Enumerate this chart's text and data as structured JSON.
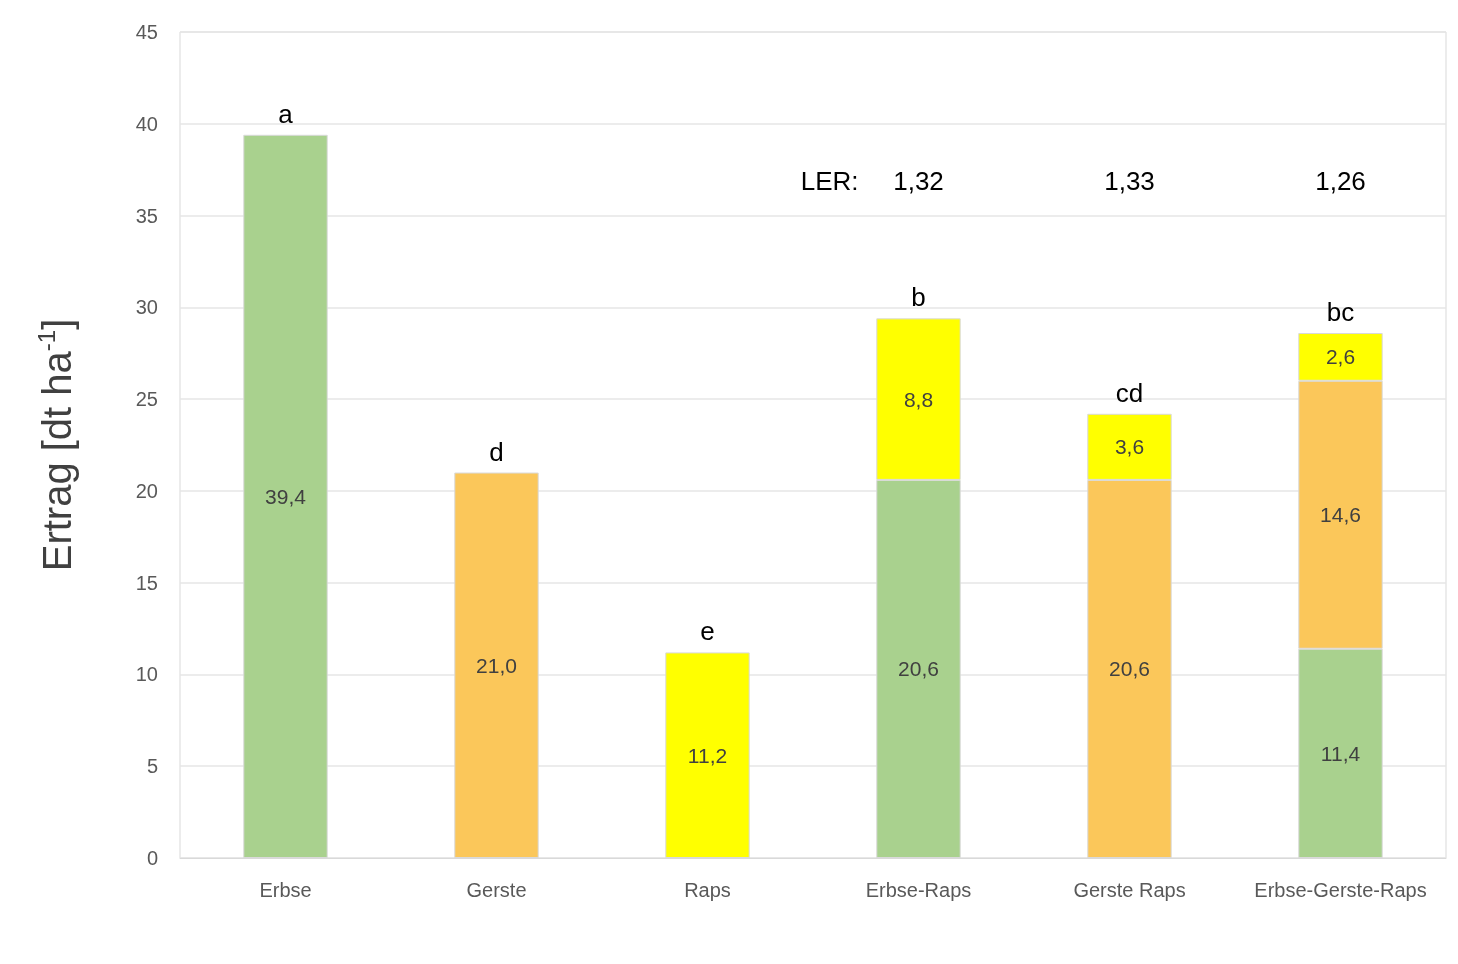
{
  "chart_data": {
    "type": "bar",
    "stacked": true,
    "categories": [
      "Erbse",
      "Gerste",
      "Raps",
      "Erbse-Raps",
      "Gerste Raps",
      "Erbse-Gerste-Raps"
    ],
    "ylabel": "Ertrag [dt ha$^{-1}$]",
    "series": [
      {
        "color": "#a9d18e",
        "values": [
          39.4,
          null,
          null,
          20.6,
          null,
          11.4
        ],
        "value_labels": [
          "39,4",
          null,
          null,
          "20,6",
          null,
          "11,4"
        ]
      },
      {
        "color": "#fbc75a",
        "values": [
          null,
          21.0,
          null,
          null,
          20.6,
          14.6
        ],
        "value_labels": [
          null,
          "21,0",
          null,
          null,
          "20,6",
          "14,6"
        ]
      },
      {
        "color": "#ffff00",
        "values": [
          null,
          null,
          11.2,
          8.8,
          3.6,
          2.6
        ],
        "value_labels": [
          null,
          null,
          "11,2",
          "8,8",
          "3,6",
          "2,6"
        ]
      }
    ],
    "ylim": [
      0,
      45
    ],
    "yticks": [
      0,
      5,
      10,
      15,
      20,
      25,
      30,
      35,
      40,
      45
    ],
    "grid": "y",
    "annotations": [
      {
        "text": "a",
        "x": "Erbse",
        "y": 39.4
      },
      {
        "text": "d",
        "x": "Gerste",
        "y": 21.0
      },
      {
        "text": "e",
        "x": "Raps",
        "y": 11.2
      },
      {
        "text": "b",
        "x": "Erbse-Raps",
        "y": 29.4
      },
      {
        "text": "cd",
        "x": "Gerste Raps",
        "y": 24.2
      },
      {
        "text": "bc",
        "x": "Erbse-Gerste-Raps",
        "y": 28.6
      },
      "LER:",
      "1,32",
      "1,33",
      "1,26"
    ]
  }
}
